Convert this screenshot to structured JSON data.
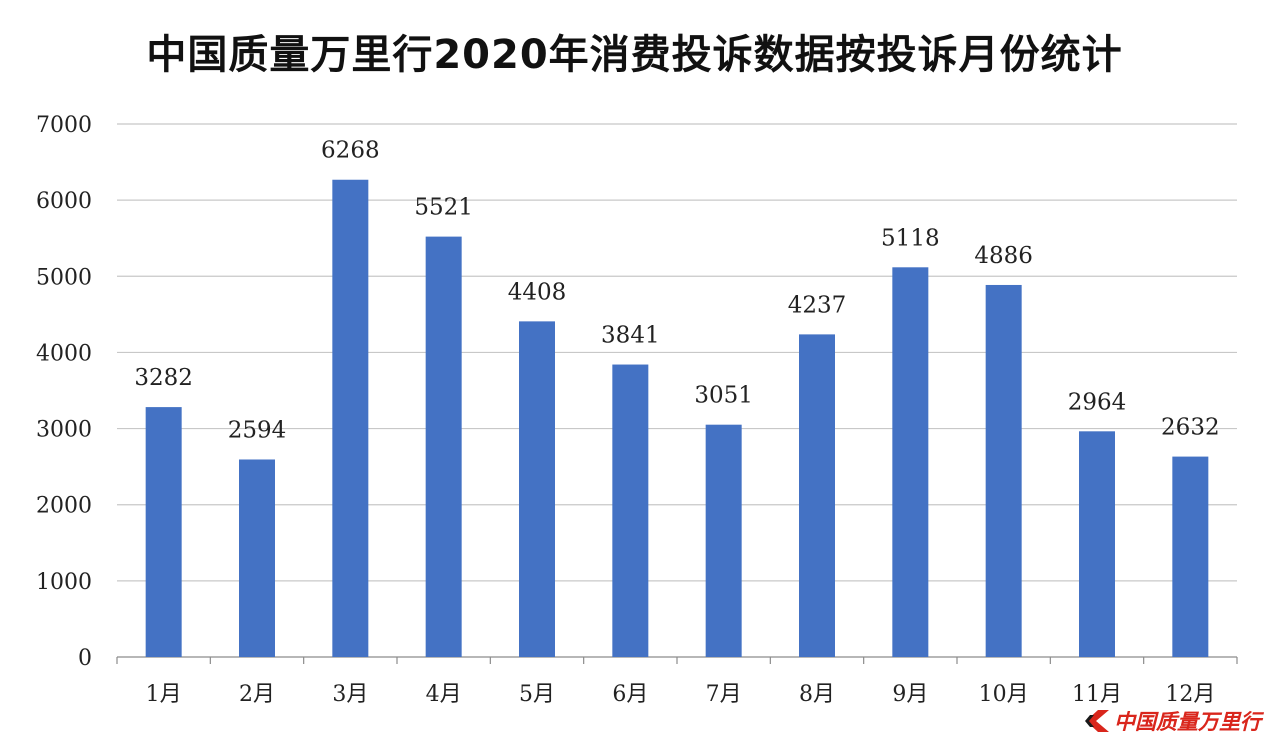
{
  "chart_data": {
    "type": "bar",
    "title": "中国质量万里行2020年消费投诉数据按投诉月份统计",
    "categories": [
      "1月",
      "2月",
      "3月",
      "4月",
      "5月",
      "6月",
      "7月",
      "8月",
      "9月",
      "10月",
      "11月",
      "12月"
    ],
    "values": [
      3282,
      2594,
      6268,
      5521,
      4408,
      3841,
      3051,
      4237,
      5118,
      4886,
      2964,
      2632
    ],
    "ylim": [
      0,
      7000
    ],
    "yticks": [
      0,
      1000,
      2000,
      3000,
      4000,
      5000,
      6000,
      7000
    ],
    "xlabel": "",
    "ylabel": "",
    "grid": true,
    "bar_color": "#4472c4",
    "data_labels": true
  },
  "watermark": {
    "text": "中国质量万里行",
    "color": "#d9261c"
  }
}
